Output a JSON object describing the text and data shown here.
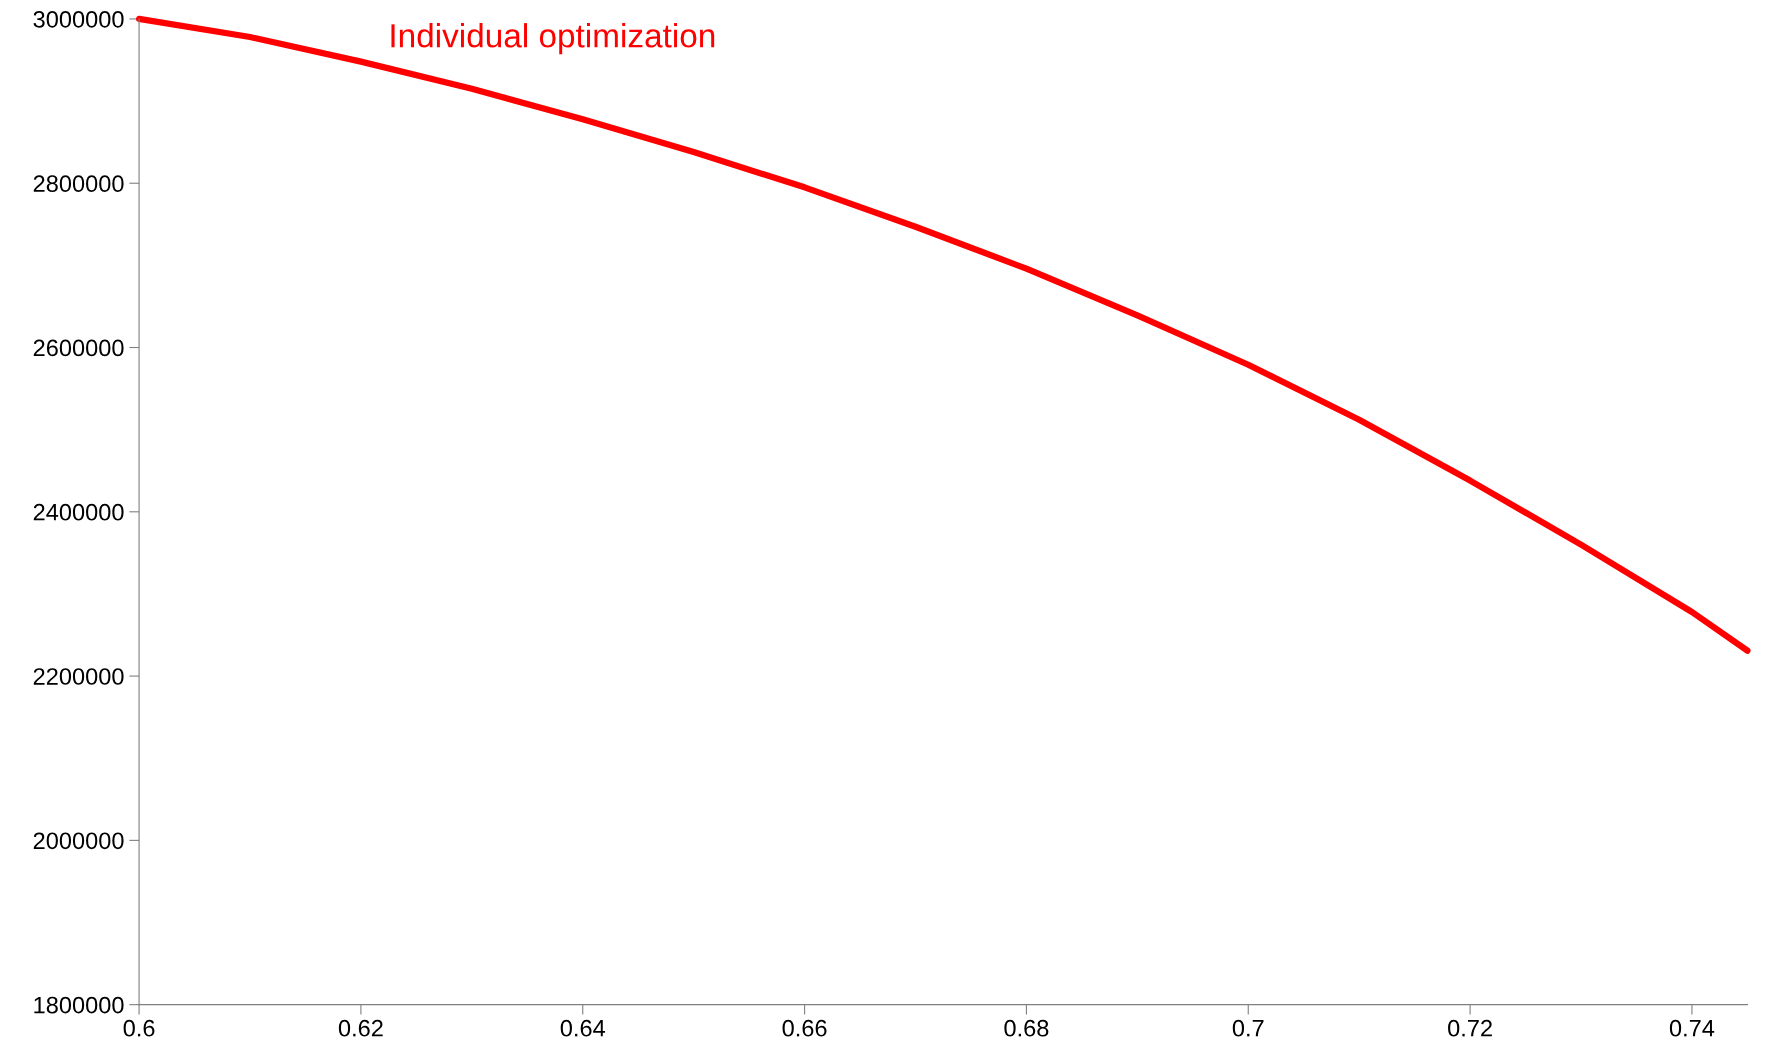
{
  "chart_data": {
    "type": "line",
    "x": [
      0.6,
      0.61,
      0.62,
      0.63,
      0.64,
      0.65,
      0.66,
      0.67,
      0.68,
      0.69,
      0.7,
      0.71,
      0.72,
      0.73,
      0.74,
      0.745
    ],
    "series": [
      {
        "name": "Individual optimization",
        "color": "#ff0000",
        "values": [
          3000000,
          2978000,
          2948000,
          2915000,
          2878000,
          2838000,
          2795000,
          2747000,
          2696000,
          2639000,
          2579000,
          2512000,
          2438000,
          2360000,
          2278000,
          2231000
        ]
      }
    ],
    "xlim": [
      0.6,
      0.745
    ],
    "xticks": [
      0.6,
      0.62,
      0.64,
      0.66,
      0.68,
      0.7,
      0.72,
      0.74
    ],
    "ylim": [
      1800000,
      3000000
    ],
    "yticks": [
      1800000,
      2000000,
      2200000,
      2400000,
      2600000,
      2800000,
      3000000
    ],
    "grid": false,
    "legend": false,
    "marker": "none",
    "line_style": "solid"
  }
}
